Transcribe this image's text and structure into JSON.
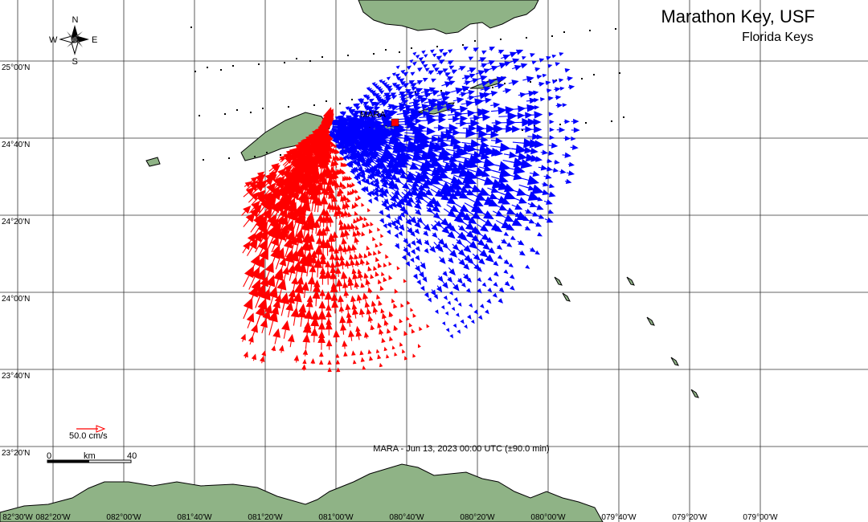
{
  "title": "Marathon Key, USF",
  "subtitle": "Florida Keys",
  "station": {
    "label": "MARA",
    "lon": -81.05,
    "lat": 24.72
  },
  "timestamp": "MARA - Jun 13, 2023 00:00 UTC (±90.0 min)",
  "compass": {
    "n": "N",
    "s": "S",
    "e": "E",
    "w": "W"
  },
  "legend": {
    "label": "50.0 cm/s",
    "color": "#ff0000"
  },
  "scalebar": {
    "min": "0",
    "unit": "km",
    "max": "40"
  },
  "lat_labels": [
    {
      "lat": 25.0,
      "text": "25°00'N"
    },
    {
      "lat": 24.6667,
      "text": "24°40'N"
    },
    {
      "lat": 24.3333,
      "text": "24°20'N"
    },
    {
      "lat": 24.0,
      "text": "24°00'N"
    },
    {
      "lat": 23.6667,
      "text": "23°40'N"
    },
    {
      "lat": 23.3333,
      "text": "23°20'N"
    }
  ],
  "lon_labels": [
    {
      "lon": -82.5,
      "text": "82°30'W"
    },
    {
      "lon": -82.3333,
      "text": "082°20'W"
    },
    {
      "lon": -82.0,
      "text": "082°00'W"
    },
    {
      "lon": -81.6667,
      "text": "081°40'W"
    },
    {
      "lon": -81.3333,
      "text": "081°20'W"
    },
    {
      "lon": -81.0,
      "text": "081°00'W"
    },
    {
      "lon": -80.6667,
      "text": "080°40'W"
    },
    {
      "lon": -80.3333,
      "text": "080°20'W"
    },
    {
      "lon": -80.0,
      "text": "080°00'W"
    },
    {
      "lon": -79.6667,
      "text": "079°40'W"
    },
    {
      "lon": -79.3333,
      "text": "079°20'W"
    },
    {
      "lon": -79.0,
      "text": "079°00'W"
    }
  ],
  "colors": {
    "toward": "#ff0000",
    "away": "#0000ff",
    "land": "#8fb386",
    "grid": "#333333"
  }
}
